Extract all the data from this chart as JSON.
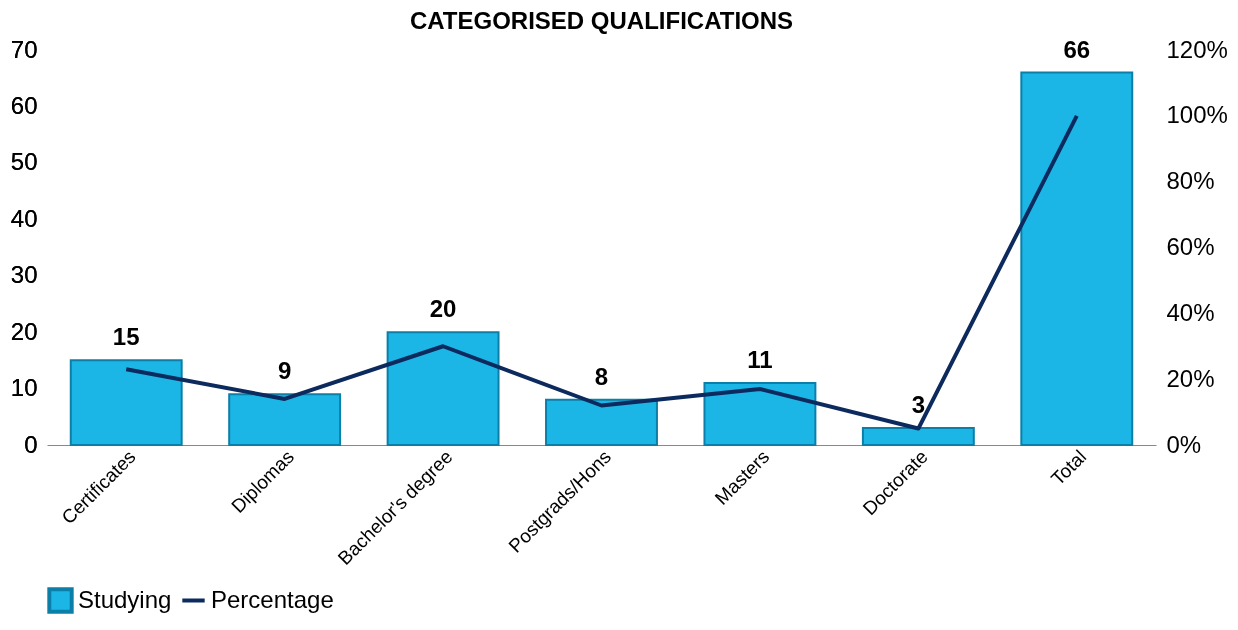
{
  "chart_data": {
    "type": "bar",
    "title": "CATEGORISED QUALIFICATIONS",
    "categories": [
      "Certificates",
      "Diplomas",
      "Bachelor's degree",
      "Postgrads/Hons",
      "Masters",
      "Doctorate",
      "Total"
    ],
    "series": [
      {
        "name": "Studying",
        "color": "#1cb6e6",
        "values": [
          15,
          9,
          20,
          8,
          11,
          3,
          66
        ],
        "value_labels": [
          "15",
          "9",
          "20",
          "8",
          "11",
          "3",
          "66"
        ]
      },
      {
        "name": "Percentage",
        "type": "line",
        "axis": "y2",
        "color": "#0d2a5e",
        "values": [
          23,
          14,
          30,
          12,
          17,
          5,
          100
        ]
      }
    ],
    "ylim": [
      0,
      70
    ],
    "yticks": [
      0,
      10,
      20,
      30,
      40,
      50,
      60,
      70
    ],
    "y2lim": [
      0,
      120
    ],
    "y2ticks": [
      {
        "value": 0,
        "label": "0%"
      },
      {
        "value": 20,
        "label": "20%"
      },
      {
        "value": 40,
        "label": "40%"
      },
      {
        "value": 60,
        "label": "60%"
      },
      {
        "value": 80,
        "label": "80%"
      },
      {
        "value": 100,
        "label": "100%"
      },
      {
        "value": 120,
        "label": "120%"
      }
    ],
    "grid": false,
    "legend": "bottom",
    "marker": "none",
    "line_style": "solid"
  }
}
